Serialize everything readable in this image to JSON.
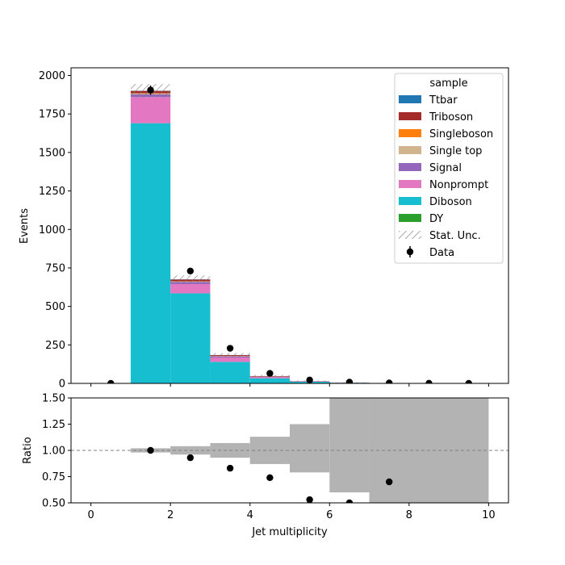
{
  "chart_data": [
    {
      "type": "bar",
      "stacked": true,
      "ylabel": "Events",
      "ylim": [
        0,
        2050
      ],
      "xlim": [
        -0.5,
        10.5
      ],
      "yticks": [
        0,
        250,
        500,
        750,
        1000,
        1250,
        1500,
        1750,
        2000
      ],
      "bin_edges": [
        1,
        2,
        3,
        4,
        5,
        6,
        7,
        8,
        9,
        10
      ],
      "legend_title": "sample",
      "legend_position": "top-right",
      "series": [
        {
          "name": "DY",
          "color": "#2ca02c",
          "values": [
            0,
            0,
            0,
            0,
            0,
            0,
            0,
            0,
            0
          ]
        },
        {
          "name": "Diboson",
          "color": "#17becf",
          "values": [
            1690,
            585,
            140,
            33,
            11,
            4,
            1.5,
            0.5,
            0.2
          ]
        },
        {
          "name": "Nonprompt",
          "color": "#e377c2",
          "values": [
            170,
            60,
            28,
            7,
            2,
            0.5,
            0.2,
            0,
            0
          ]
        },
        {
          "name": "Signal",
          "color": "#9467bd",
          "values": [
            18,
            14,
            7,
            3,
            1,
            0.5,
            0.2,
            0,
            0
          ]
        },
        {
          "name": "Single top",
          "color": "#d2b48c",
          "values": [
            5,
            3,
            2,
            1,
            0.3,
            0.1,
            0,
            0,
            0
          ]
        },
        {
          "name": "Singleboson",
          "color": "#ff7f0e",
          "values": [
            2,
            1,
            0.5,
            0.2,
            0.1,
            0,
            0,
            0,
            0
          ]
        },
        {
          "name": "Triboson",
          "color": "#a52a2a",
          "values": [
            15,
            12,
            6,
            3,
            1,
            0.4,
            0.1,
            0,
            0
          ]
        },
        {
          "name": "Ttbar",
          "color": "#1f77b4",
          "values": [
            1,
            1,
            0.5,
            0.3,
            0.1,
            0,
            0,
            0,
            0
          ]
        }
      ],
      "legend_order": [
        "Ttbar",
        "Triboson",
        "Singleboson",
        "Single top",
        "Signal",
        "Nonprompt",
        "Diboson",
        "DY",
        "Stat. Unc.",
        "Data"
      ],
      "stat_unc_label": "Stat. Unc.",
      "data_label": "Data",
      "data_points": {
        "x": [
          0.5,
          1.5,
          2.5,
          3.5,
          4.5,
          5.5,
          6.5,
          7.5,
          8.5,
          9.5
        ],
        "y": [
          0,
          1905,
          730,
          228,
          65,
          22,
          8,
          3,
          1,
          0
        ],
        "err": [
          0,
          30,
          20,
          0,
          0,
          0,
          0,
          0,
          0,
          0
        ]
      }
    },
    {
      "type": "scatter",
      "xlabel": "Jet multiplicity",
      "ylabel": "Ratio",
      "ylim": [
        0.5,
        1.5
      ],
      "xlim": [
        -0.5,
        10.5
      ],
      "yticks": [
        0.5,
        0.75,
        1.0,
        1.25,
        1.5
      ],
      "ytick_labels": [
        "0.50",
        "0.75",
        "1.00",
        "1.25",
        "1.50"
      ],
      "xticks": [
        0,
        2,
        4,
        6,
        8,
        10
      ],
      "reference_line": 1.0,
      "uncertainty_bands": [
        {
          "x0": 1,
          "x1": 2,
          "lo": 0.98,
          "hi": 1.02
        },
        {
          "x0": 2,
          "x1": 3,
          "lo": 0.96,
          "hi": 1.04
        },
        {
          "x0": 3,
          "x1": 4,
          "lo": 0.93,
          "hi": 1.07
        },
        {
          "x0": 4,
          "x1": 5,
          "lo": 0.87,
          "hi": 1.13
        },
        {
          "x0": 5,
          "x1": 6,
          "lo": 0.79,
          "hi": 1.25
        },
        {
          "x0": 6,
          "x1": 7,
          "lo": 0.6,
          "hi": 1.5
        },
        {
          "x0": 7,
          "x1": 10,
          "lo": 0.5,
          "hi": 1.5
        }
      ],
      "points": {
        "x": [
          1.5,
          2.5,
          3.5,
          4.5,
          5.5,
          6.5,
          7.5
        ],
        "y": [
          1.0,
          0.93,
          0.83,
          0.74,
          0.53,
          0.5,
          0.7
        ]
      }
    }
  ]
}
